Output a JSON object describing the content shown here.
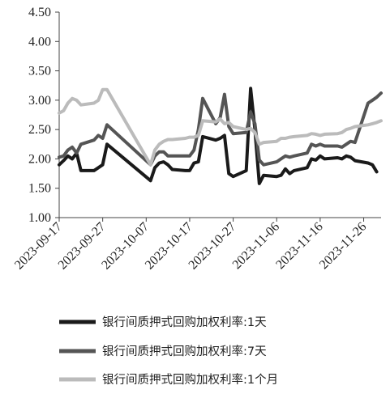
{
  "chart_data": {
    "type": "line",
    "title": "",
    "xlabel": "",
    "ylabel": "",
    "ylim": [
      1.0,
      4.5
    ],
    "y_ticks": [
      "1.00",
      "1.50",
      "2.00",
      "2.50",
      "3.00",
      "3.50",
      "4.00",
      "4.50"
    ],
    "x_range": [
      "2023-09-17",
      "2023-11-30"
    ],
    "x_ticks": [
      "2023-09-17",
      "2023-09-27",
      "2023-10-07",
      "2023-10-17",
      "2023-10-27",
      "2023-11-06",
      "2023-11-16",
      "2023-11-26"
    ],
    "grid": false,
    "legend_position": "bottom",
    "series": [
      {
        "name": "银行间质押式回购加权利率:1天",
        "color": "#1a1a1a",
        "points": [
          [
            "2023-09-17",
            1.9
          ],
          [
            "2023-09-18",
            1.97
          ],
          [
            "2023-09-19",
            2.05
          ],
          [
            "2023-09-20",
            2.0
          ],
          [
            "2023-09-21",
            2.1
          ],
          [
            "2023-09-22",
            1.8
          ],
          [
            "2023-09-25",
            1.8
          ],
          [
            "2023-09-26",
            1.85
          ],
          [
            "2023-09-27",
            1.9
          ],
          [
            "2023-09-28",
            2.25
          ],
          [
            "2023-10-08",
            1.63
          ],
          [
            "2023-10-09",
            1.85
          ],
          [
            "2023-10-10",
            1.93
          ],
          [
            "2023-10-11",
            1.95
          ],
          [
            "2023-10-12",
            1.9
          ],
          [
            "2023-10-13",
            1.82
          ],
          [
            "2023-10-16",
            1.8
          ],
          [
            "2023-10-17",
            1.8
          ],
          [
            "2023-10-18",
            1.93
          ],
          [
            "2023-10-19",
            1.95
          ],
          [
            "2023-10-20",
            2.38
          ],
          [
            "2023-10-23",
            2.32
          ],
          [
            "2023-10-24",
            2.35
          ],
          [
            "2023-10-25",
            2.4
          ],
          [
            "2023-10-26",
            1.75
          ],
          [
            "2023-10-27",
            1.7
          ],
          [
            "2023-10-30",
            1.8
          ],
          [
            "2023-10-31",
            3.2
          ],
          [
            "2023-11-01",
            2.5
          ],
          [
            "2023-11-02",
            1.58
          ],
          [
            "2023-11-03",
            1.72
          ],
          [
            "2023-11-06",
            1.7
          ],
          [
            "2023-11-07",
            1.72
          ],
          [
            "2023-11-08",
            1.83
          ],
          [
            "2023-11-09",
            1.75
          ],
          [
            "2023-11-10",
            1.8
          ],
          [
            "2023-11-13",
            1.85
          ],
          [
            "2023-11-14",
            2.0
          ],
          [
            "2023-11-15",
            1.98
          ],
          [
            "2023-11-16",
            2.05
          ],
          [
            "2023-11-17",
            2.0
          ],
          [
            "2023-11-20",
            2.02
          ],
          [
            "2023-11-21",
            2.0
          ],
          [
            "2023-11-22",
            2.05
          ],
          [
            "2023-11-23",
            2.03
          ],
          [
            "2023-11-24",
            1.97
          ],
          [
            "2023-11-27",
            1.93
          ],
          [
            "2023-11-28",
            1.9
          ],
          [
            "2023-11-29",
            1.78
          ]
        ]
      },
      {
        "name": "银行间质押式回购加权利率:7天",
        "color": "#555555",
        "points": [
          [
            "2023-09-17",
            2.03
          ],
          [
            "2023-09-18",
            2.05
          ],
          [
            "2023-09-19",
            2.15
          ],
          [
            "2023-09-20",
            2.2
          ],
          [
            "2023-09-21",
            2.1
          ],
          [
            "2023-09-22",
            2.25
          ],
          [
            "2023-09-25",
            2.32
          ],
          [
            "2023-09-26",
            2.4
          ],
          [
            "2023-09-27",
            2.35
          ],
          [
            "2023-09-28",
            2.58
          ],
          [
            "2023-10-08",
            1.9
          ],
          [
            "2023-10-09",
            2.05
          ],
          [
            "2023-10-10",
            2.12
          ],
          [
            "2023-10-11",
            2.12
          ],
          [
            "2023-10-12",
            2.05
          ],
          [
            "2023-10-13",
            2.05
          ],
          [
            "2023-10-16",
            2.05
          ],
          [
            "2023-10-17",
            2.05
          ],
          [
            "2023-10-18",
            2.15
          ],
          [
            "2023-10-19",
            2.5
          ],
          [
            "2023-10-20",
            3.03
          ],
          [
            "2023-10-23",
            2.6
          ],
          [
            "2023-10-24",
            2.7
          ],
          [
            "2023-10-25",
            3.1
          ],
          [
            "2023-10-26",
            2.55
          ],
          [
            "2023-10-27",
            2.43
          ],
          [
            "2023-10-30",
            2.45
          ],
          [
            "2023-10-31",
            2.8
          ],
          [
            "2023-11-01",
            2.6
          ],
          [
            "2023-11-02",
            1.98
          ],
          [
            "2023-11-03",
            1.9
          ],
          [
            "2023-11-06",
            1.95
          ],
          [
            "2023-11-07",
            2.0
          ],
          [
            "2023-11-08",
            2.05
          ],
          [
            "2023-11-09",
            2.03
          ],
          [
            "2023-11-10",
            2.05
          ],
          [
            "2023-11-13",
            2.1
          ],
          [
            "2023-11-14",
            2.25
          ],
          [
            "2023-11-15",
            2.22
          ],
          [
            "2023-11-16",
            2.25
          ],
          [
            "2023-11-17",
            2.22
          ],
          [
            "2023-11-20",
            2.22
          ],
          [
            "2023-11-21",
            2.2
          ],
          [
            "2023-11-22",
            2.25
          ],
          [
            "2023-11-23",
            2.3
          ],
          [
            "2023-11-24",
            2.28
          ],
          [
            "2023-11-27",
            2.95
          ],
          [
            "2023-11-28",
            3.0
          ],
          [
            "2023-11-29",
            3.05
          ],
          [
            "2023-11-30",
            3.12
          ]
        ]
      },
      {
        "name": "银行间质押式回购加权利率:1个月",
        "color": "#bbbbbb",
        "points": [
          [
            "2023-09-17",
            2.78
          ],
          [
            "2023-09-18",
            2.82
          ],
          [
            "2023-09-19",
            2.95
          ],
          [
            "2023-09-20",
            3.03
          ],
          [
            "2023-09-21",
            3.0
          ],
          [
            "2023-09-22",
            2.92
          ],
          [
            "2023-09-25",
            2.95
          ],
          [
            "2023-09-26",
            3.0
          ],
          [
            "2023-09-27",
            3.18
          ],
          [
            "2023-09-28",
            3.18
          ],
          [
            "2023-10-08",
            1.9
          ],
          [
            "2023-10-09",
            2.15
          ],
          [
            "2023-10-10",
            2.25
          ],
          [
            "2023-10-11",
            2.3
          ],
          [
            "2023-10-12",
            2.33
          ],
          [
            "2023-10-13",
            2.33
          ],
          [
            "2023-10-16",
            2.35
          ],
          [
            "2023-10-17",
            2.37
          ],
          [
            "2023-10-18",
            2.37
          ],
          [
            "2023-10-19",
            2.4
          ],
          [
            "2023-10-20",
            2.65
          ],
          [
            "2023-10-23",
            2.63
          ],
          [
            "2023-10-24",
            2.68
          ],
          [
            "2023-10-25",
            2.6
          ],
          [
            "2023-10-26",
            2.62
          ],
          [
            "2023-10-27",
            2.55
          ],
          [
            "2023-10-30",
            2.5
          ],
          [
            "2023-10-31",
            2.52
          ],
          [
            "2023-11-01",
            2.45
          ],
          [
            "2023-11-02",
            2.25
          ],
          [
            "2023-11-03",
            2.28
          ],
          [
            "2023-11-06",
            2.3
          ],
          [
            "2023-11-07",
            2.35
          ],
          [
            "2023-11-08",
            2.35
          ],
          [
            "2023-11-09",
            2.37
          ],
          [
            "2023-11-10",
            2.38
          ],
          [
            "2023-11-13",
            2.4
          ],
          [
            "2023-11-14",
            2.43
          ],
          [
            "2023-11-15",
            2.42
          ],
          [
            "2023-11-16",
            2.4
          ],
          [
            "2023-11-17",
            2.42
          ],
          [
            "2023-11-20",
            2.43
          ],
          [
            "2023-11-21",
            2.45
          ],
          [
            "2023-11-22",
            2.5
          ],
          [
            "2023-11-23",
            2.52
          ],
          [
            "2023-11-24",
            2.55
          ],
          [
            "2023-11-27",
            2.58
          ],
          [
            "2023-11-28",
            2.6
          ],
          [
            "2023-11-29",
            2.62
          ],
          [
            "2023-11-30",
            2.65
          ]
        ]
      }
    ]
  }
}
